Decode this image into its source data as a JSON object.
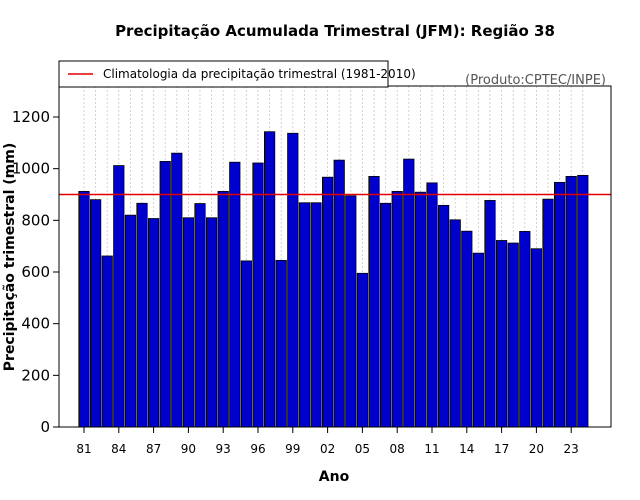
{
  "chart_data": {
    "type": "bar",
    "title": "Precipitação Acumulada Trimestral (JFM): Região 38",
    "xlabel": "Ano",
    "ylabel": "Precipitação trimestral (mm)",
    "credit": "(Produto:CPTEC/INPE)",
    "legend": {
      "label": "Climatologia da precipitação trimestral (1981-2010)",
      "position": "top-left",
      "line_color": "#e00000"
    },
    "climatology": 900,
    "ylim": [
      0,
      1320
    ],
    "yticks": [
      0,
      200,
      400,
      600,
      800,
      1000,
      1200
    ],
    "bar_fill": "#0000cc",
    "bar_edge": "#000000",
    "grid": true,
    "categories": [
      "1981",
      "1982",
      "1983",
      "1984",
      "1985",
      "1986",
      "1987",
      "1988",
      "1989",
      "1990",
      "1991",
      "1992",
      "1993",
      "1994",
      "1995",
      "1996",
      "1997",
      "1998",
      "1999",
      "2000",
      "2001",
      "2002",
      "2003",
      "2004",
      "2005",
      "2006",
      "2007",
      "2008",
      "2009",
      "2010",
      "2011",
      "2012",
      "2013",
      "2014",
      "2015",
      "2016",
      "2017",
      "2018",
      "2019",
      "2020",
      "2021",
      "2022",
      "2023",
      "2024"
    ],
    "values": [
      912,
      880,
      662,
      1012,
      820,
      866,
      807,
      1028,
      1060,
      810,
      865,
      810,
      912,
      1025,
      643,
      1022,
      1143,
      645,
      1137,
      868,
      868,
      967,
      1033,
      895,
      595,
      970,
      866,
      912,
      1037,
      909,
      945,
      858,
      802,
      758,
      673,
      877,
      722,
      712,
      757,
      690,
      882,
      947,
      970,
      974
    ],
    "xtick_labels": [
      "81",
      "84",
      "87",
      "90",
      "93",
      "96",
      "99",
      "02",
      "05",
      "08",
      "11",
      "14",
      "17",
      "20",
      "23"
    ],
    "xtick_indices": [
      0,
      3,
      6,
      9,
      12,
      15,
      18,
      21,
      24,
      27,
      30,
      33,
      36,
      39,
      42
    ]
  }
}
